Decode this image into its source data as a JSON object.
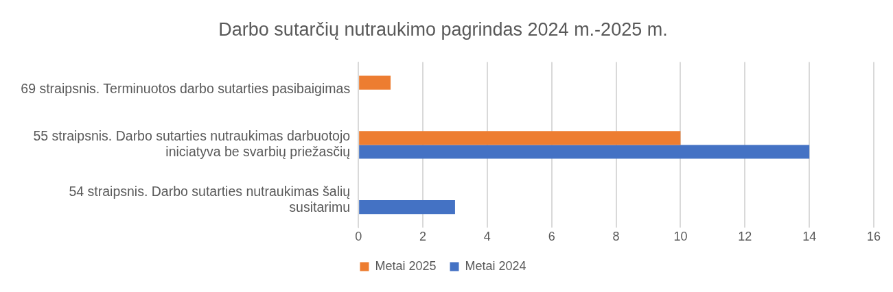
{
  "chart_data": {
    "type": "bar",
    "orientation": "horizontal",
    "title": "Darbo sutarčių nutraukimo pagrindas 2024 m.-2025 m.",
    "categories": [
      "69 straipsnis. Terminuotos darbo sutarties pasibaigimas",
      "55 straipsnis. Darbo sutarties nutraukimas darbuotojo iniciatyva be svarbių priežasčių",
      "54 straipsnis. Darbo sutarties nutraukimas šalių susitarimu"
    ],
    "series": [
      {
        "name": "Metai 2025",
        "color": "#ed7d31",
        "values": [
          1,
          10,
          null
        ]
      },
      {
        "name": "Metai 2024",
        "color": "#4472c4",
        "values": [
          null,
          14,
          3
        ]
      }
    ],
    "xlim": [
      0,
      16
    ],
    "xticks": [
      0,
      2,
      4,
      6,
      8,
      10,
      12,
      14,
      16
    ],
    "grid": "x",
    "legend": "bottom"
  }
}
